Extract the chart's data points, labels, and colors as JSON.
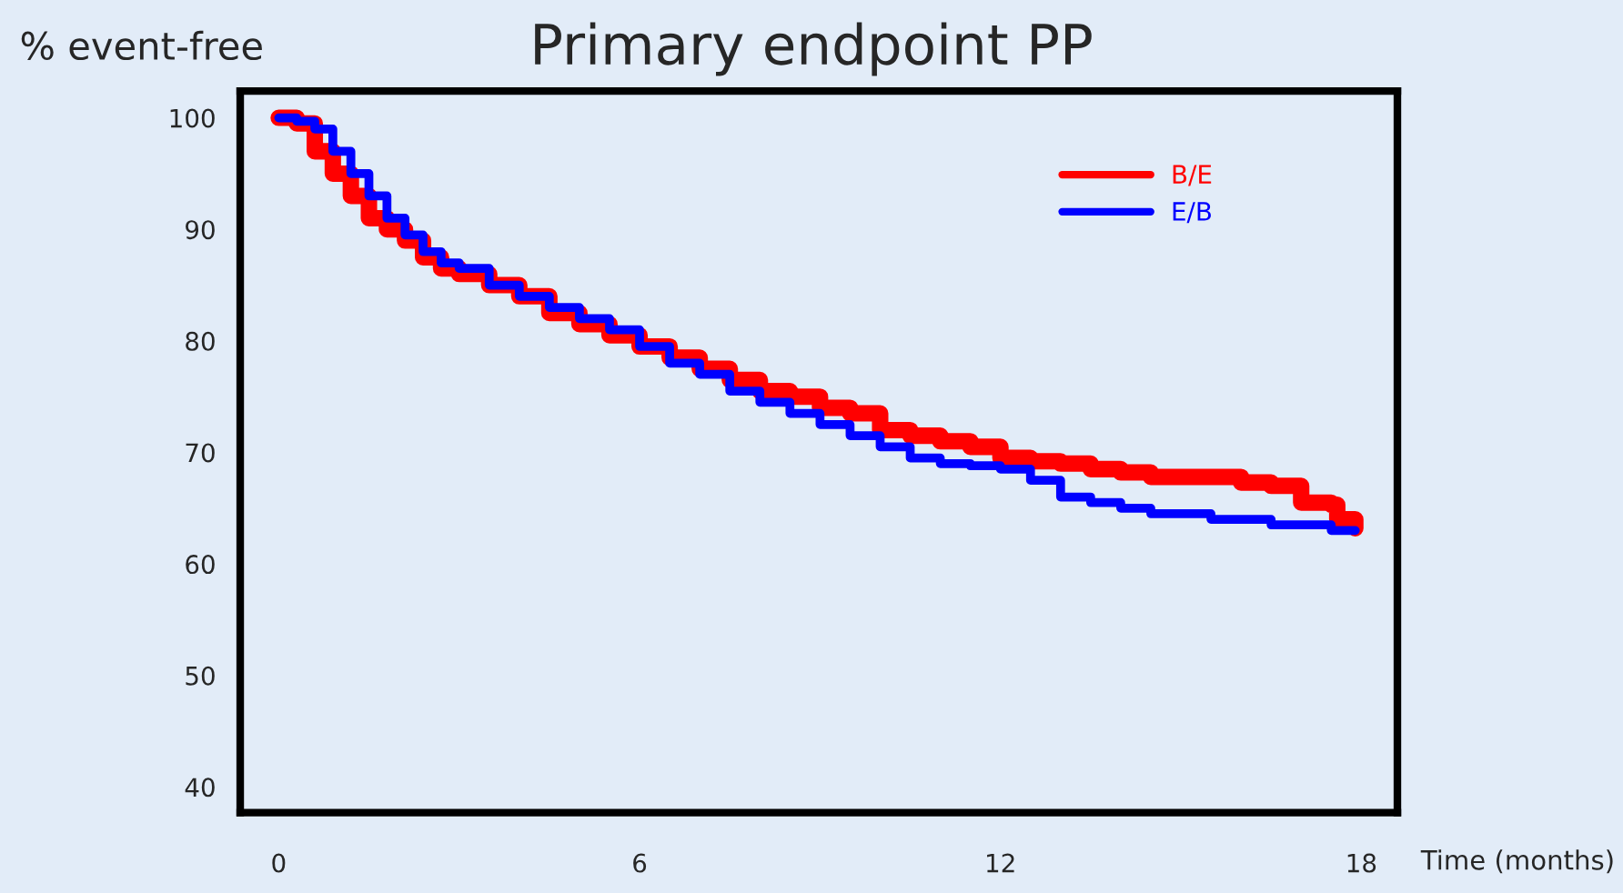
{
  "chart_data": {
    "type": "step",
    "title": "Primary endpoint PP",
    "ylabel": "% event-free",
    "xlabel": "Time (months)",
    "xlim": [
      -0.64,
      18.6
    ],
    "xticks": [
      0,
      6,
      12,
      18
    ],
    "ylim": [
      37.7,
      102.4
    ],
    "yticks": [
      40,
      50,
      60,
      70,
      80,
      90,
      100
    ],
    "grid": false,
    "legend": "top right",
    "series": [
      {
        "name": "B/E",
        "color": "#ff0000",
        "x": [
          0,
          0.3,
          0.6,
          0.9,
          1.2,
          1.5,
          1.8,
          2.1,
          2.4,
          2.7,
          3.0,
          3.5,
          4,
          4.5,
          5,
          5.5,
          6,
          6.5,
          7,
          7.5,
          8,
          8.5,
          9,
          9.5,
          10,
          10.5,
          11,
          11.5,
          12,
          12.5,
          13,
          13.5,
          14,
          14.5,
          15,
          15.5,
          16,
          16.5,
          17,
          17.5,
          17.6,
          17.9
        ],
        "values": [
          100,
          99.5,
          97,
          95,
          93,
          91,
          90,
          89,
          87.5,
          86.5,
          86,
          85,
          84,
          82.5,
          81.5,
          80.5,
          79.5,
          78.5,
          77.5,
          76.5,
          75.5,
          75,
          74,
          73.5,
          72,
          71.5,
          71,
          70.5,
          69.5,
          69.2,
          69,
          68.5,
          68.2,
          67.8,
          67.8,
          67.8,
          67.3,
          67,
          65.5,
          65.3,
          64,
          63.2
        ]
      },
      {
        "name": "E/B",
        "color": "#0000ff",
        "x": [
          0,
          0.3,
          0.6,
          0.9,
          1.2,
          1.5,
          1.8,
          2.1,
          2.4,
          2.7,
          3,
          3.5,
          4,
          4.5,
          5,
          5.5,
          6,
          6.5,
          7,
          7.5,
          8,
          8.5,
          9,
          9.5,
          10,
          10.5,
          11,
          11.5,
          12,
          12.5,
          13,
          13.5,
          14,
          14.5,
          15,
          15.5,
          16,
          16.5,
          17,
          17.5,
          17.9
        ],
        "values": [
          100,
          99.7,
          99,
          97,
          95,
          93,
          91,
          89.5,
          88,
          87,
          86.5,
          85,
          84,
          83,
          82,
          81,
          79.5,
          78,
          77,
          75.5,
          74.5,
          73.5,
          72.5,
          71.5,
          70.5,
          69.5,
          69,
          68.8,
          68.5,
          67.5,
          66,
          65.5,
          65,
          64.5,
          64.5,
          64,
          64,
          63.5,
          63.5,
          63,
          63
        ]
      }
    ]
  }
}
